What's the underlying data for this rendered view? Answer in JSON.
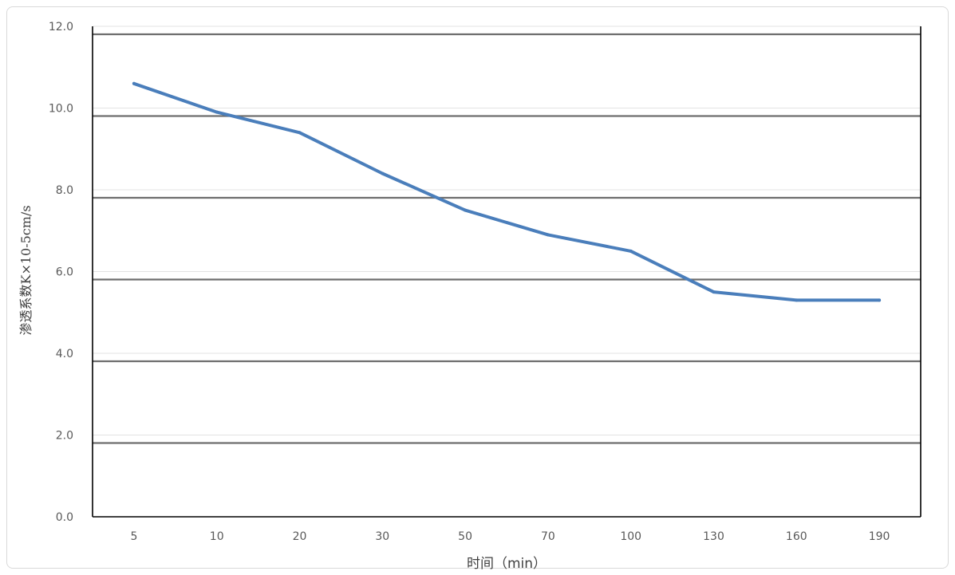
{
  "chart_data": {
    "type": "line",
    "title": "",
    "xlabel": "时间（min）",
    "ylabel": "渗透系数K×10-5cm/s",
    "categories": [
      "5",
      "10",
      "20",
      "30",
      "50",
      "70",
      "100",
      "130",
      "160",
      "190"
    ],
    "series": [
      {
        "values": [
          10.6,
          9.9,
          9.4,
          8.4,
          7.5,
          6.9,
          6.5,
          5.5,
          5.3,
          5.3
        ],
        "color": "#4a7ebb"
      }
    ],
    "yticks": [
      "0.0",
      "2.0",
      "4.0",
      "6.0",
      "8.0",
      "10.0",
      "12.0"
    ],
    "ylim": [
      0,
      12
    ],
    "grid": true,
    "legend": "none"
  }
}
